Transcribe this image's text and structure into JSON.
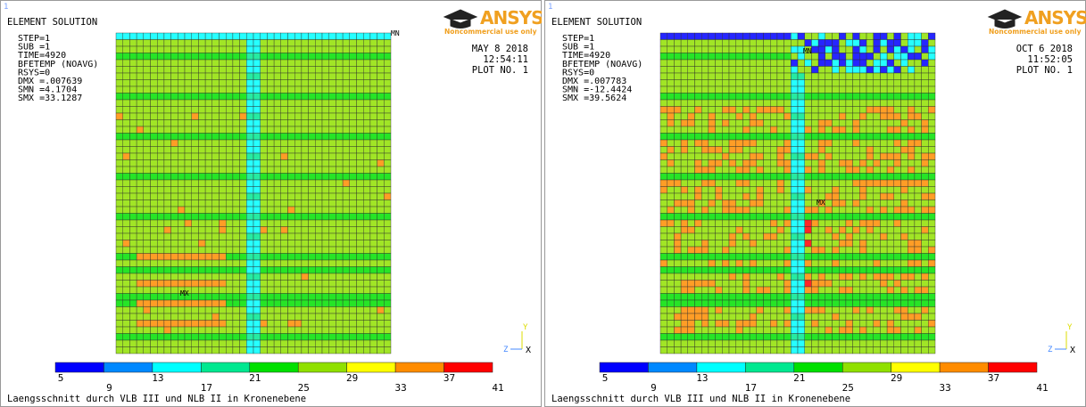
{
  "panels": [
    {
      "index": "1",
      "header": "ELEMENT SOLUTION",
      "info": [
        "STEP=1",
        "SUB =1",
        "TIME=4920",
        "BFETEMP   (NOAVG)",
        "RSYS=0",
        "DMX =.007639",
        "SMN =4.1704",
        "SMX =33.1287"
      ],
      "date": "MAY  8 2018",
      "time": "12:54:11",
      "plot": "PLOT NO.    1",
      "logo": "ANSYS",
      "logo_note": "Noncommercial use only",
      "mn": "MN",
      "mx": "MX",
      "axis_y": "Y",
      "axis_z": "Z",
      "axis_x": "X",
      "legend": {
        "colors": [
          "#0000ff",
          "#0088ff",
          "#00ffff",
          "#00e890",
          "#00e000",
          "#90e000",
          "#ffff00",
          "#ff8c00",
          "#ff0000"
        ],
        "labels": [
          "5",
          "9",
          "13",
          "17",
          "21",
          "25",
          "29",
          "33",
          "37",
          "41"
        ]
      },
      "caption": "Laengsschnitt durch VLB III und NLB II in Kronenebene"
    },
    {
      "index": "1",
      "header": "ELEMENT SOLUTION",
      "info": [
        "STEP=1",
        "SUB =1",
        "TIME=4920",
        "BFETEMP   (NOAVG)",
        "RSYS=0",
        "DMX =.007783",
        "SMN =-12.4424",
        "SMX =39.5624"
      ],
      "date": "OCT  6 2018",
      "time": "11:52:05",
      "plot": "PLOT NO.    1",
      "logo": "ANSYS",
      "logo_note": "Noncommercial use only",
      "mn": "MN",
      "mx": "MX",
      "axis_y": "Y",
      "axis_z": "Z",
      "axis_x": "X",
      "legend": {
        "colors": [
          "#0000ff",
          "#0088ff",
          "#00ffff",
          "#00e890",
          "#00e000",
          "#90e000",
          "#ffff00",
          "#ff8c00",
          "#ff0000"
        ],
        "labels": [
          "5",
          "9",
          "13",
          "17",
          "21",
          "25",
          "29",
          "33",
          "37",
          "41"
        ]
      },
      "caption": "Laengsschnitt durch VLB III und NLB II in Kronenebene"
    }
  ]
}
